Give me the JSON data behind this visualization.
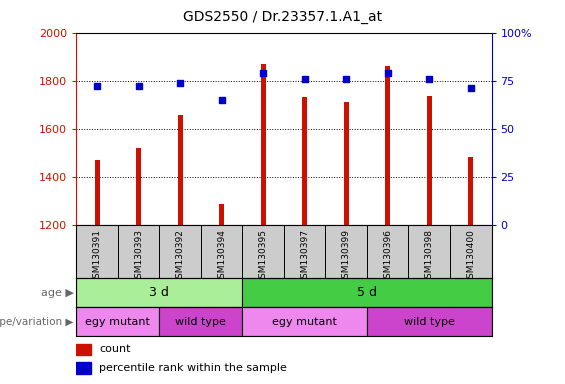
{
  "title": "GDS2550 / Dr.23357.1.A1_at",
  "samples": [
    "GSM130391",
    "GSM130393",
    "GSM130392",
    "GSM130394",
    "GSM130395",
    "GSM130397",
    "GSM130399",
    "GSM130396",
    "GSM130398",
    "GSM130400"
  ],
  "counts": [
    1470,
    1520,
    1655,
    1285,
    1870,
    1730,
    1710,
    1860,
    1735,
    1480
  ],
  "percentiles": [
    72,
    72,
    74,
    65,
    79,
    76,
    76,
    79,
    76,
    71
  ],
  "ylim_left": [
    1200,
    2000
  ],
  "ylim_right": [
    0,
    100
  ],
  "yticks_left": [
    1200,
    1400,
    1600,
    1800,
    2000
  ],
  "yticks_right": [
    0,
    25,
    50,
    75,
    100
  ],
  "bar_color": "#cc1100",
  "dot_color": "#0000cc",
  "bar_width": 0.12,
  "age_labels": [
    {
      "label": "3 d",
      "start": 0,
      "end": 4,
      "color": "#aaee99"
    },
    {
      "label": "5 d",
      "start": 4,
      "end": 10,
      "color": "#44cc44"
    }
  ],
  "genotype_labels": [
    {
      "label": "egy mutant",
      "start": 0,
      "end": 2,
      "color": "#ee88ee"
    },
    {
      "label": "wild type",
      "start": 2,
      "end": 4,
      "color": "#cc44cc"
    },
    {
      "label": "egy mutant",
      "start": 4,
      "end": 7,
      "color": "#ee88ee"
    },
    {
      "label": "wild type",
      "start": 7,
      "end": 10,
      "color": "#cc44cc"
    }
  ],
  "left_label_color": "#cc1100",
  "right_label_color": "#0000cc",
  "grid_color": "#000000",
  "sample_bg_color": "#cccccc",
  "row_label_age": "age",
  "row_label_genotype": "genotype/variation",
  "legend_count": "count",
  "legend_percentile": "percentile rank within the sample"
}
